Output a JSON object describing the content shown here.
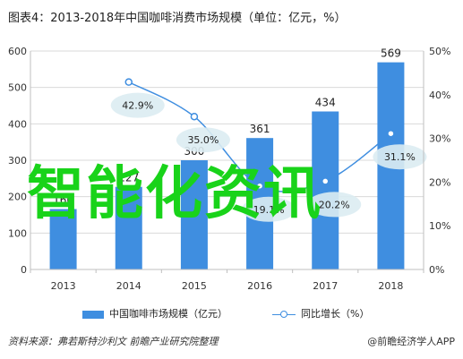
{
  "header": {
    "title": "图表4：2013-2018年中国咖啡消费市场规模（单位：亿元，%）"
  },
  "footer": {
    "source": "资料来源：弗若斯特沙利文 前瞻产业研究院整理",
    "brand": "@前瞻经济学人APP"
  },
  "overlay": {
    "text": "智能化资讯",
    "color": "#19d31a"
  },
  "chart_data": {
    "type": "bar",
    "categories": [
      "2013",
      "2014",
      "2015",
      "2016",
      "2017",
      "2018"
    ],
    "series": [
      {
        "name": "中国咖啡市场规模（亿元）",
        "type": "bar",
        "axis": "left",
        "color": "#3f8ee0",
        "values": [
          166,
          227,
          300,
          361,
          434,
          569
        ],
        "labels": [
          "166",
          "227",
          "300",
          "361",
          "434",
          "569"
        ]
      },
      {
        "name": "同比增长（%）",
        "type": "line",
        "axis": "right",
        "color": "#3f8ee0",
        "values": [
          null,
          42.9,
          35.0,
          19.1,
          20.2,
          31.1
        ],
        "labels": [
          "",
          "42.9%",
          "35.0%",
          "19.1%",
          "20.2%",
          "31.1%"
        ]
      }
    ],
    "y_left": {
      "min": 0,
      "max": 600,
      "ticks": [
        "0",
        "100",
        "200",
        "300",
        "400",
        "500",
        "600"
      ]
    },
    "y_right": {
      "min": 0,
      "max": 50,
      "ticks": [
        "0%",
        "10%",
        "20%",
        "30%",
        "40%",
        "50%"
      ]
    },
    "grid": true,
    "legend": "bottom"
  }
}
